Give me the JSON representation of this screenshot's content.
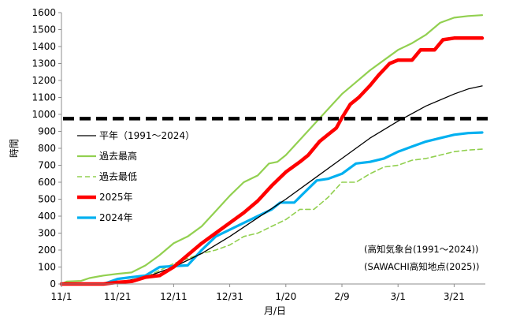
{
  "chart_data": {
    "type": "line",
    "xlabel": "月/日",
    "ylabel": "時間",
    "ylim": [
      0,
      1600
    ],
    "yticks": [
      0,
      100,
      200,
      300,
      400,
      500,
      600,
      700,
      800,
      900,
      1000,
      1100,
      1200,
      1300,
      1400,
      1500,
      1600
    ],
    "xlim": [
      0,
      150
    ],
    "xticks": [
      {
        "day": 0,
        "label": "11/1"
      },
      {
        "day": 20,
        "label": "11/21"
      },
      {
        "day": 40,
        "label": "12/11"
      },
      {
        "day": 60,
        "label": "12/31"
      },
      {
        "day": 80,
        "label": "1/20"
      },
      {
        "day": 100,
        "label": "2/9"
      },
      {
        "day": 120,
        "label": "3/1"
      },
      {
        "day": 140,
        "label": "3/21"
      }
    ],
    "grid": false,
    "reference_line": {
      "value": 975,
      "style": "dashed",
      "color": "#000000"
    },
    "series": [
      {
        "name": "平年（1991～2024）",
        "color": "#000000",
        "dash": "solid",
        "width": 1.3,
        "points": [
          [
            0,
            0
          ],
          [
            12,
            0
          ],
          [
            20,
            10
          ],
          [
            30,
            40
          ],
          [
            40,
            100
          ],
          [
            50,
            180
          ],
          [
            60,
            280
          ],
          [
            70,
            390
          ],
          [
            80,
            500
          ],
          [
            90,
            620
          ],
          [
            100,
            740
          ],
          [
            105,
            800
          ],
          [
            110,
            860
          ],
          [
            120,
            960
          ],
          [
            130,
            1050
          ],
          [
            140,
            1120
          ],
          [
            145,
            1150
          ],
          [
            150,
            1168
          ]
        ]
      },
      {
        "name": "過去最高",
        "color": "#92d050",
        "dash": "solid",
        "width": 2.2,
        "points": [
          [
            0,
            0
          ],
          [
            2,
            15
          ],
          [
            7,
            18
          ],
          [
            10,
            35
          ],
          [
            15,
            50
          ],
          [
            20,
            60
          ],
          [
            25,
            68
          ],
          [
            30,
            110
          ],
          [
            35,
            170
          ],
          [
            40,
            240
          ],
          [
            45,
            280
          ],
          [
            50,
            340
          ],
          [
            55,
            430
          ],
          [
            60,
            520
          ],
          [
            65,
            600
          ],
          [
            70,
            640
          ],
          [
            74,
            710
          ],
          [
            77,
            720
          ],
          [
            80,
            760
          ],
          [
            85,
            850
          ],
          [
            90,
            940
          ],
          [
            95,
            1030
          ],
          [
            100,
            1120
          ],
          [
            105,
            1190
          ],
          [
            110,
            1260
          ],
          [
            115,
            1320
          ],
          [
            120,
            1380
          ],
          [
            125,
            1420
          ],
          [
            130,
            1470
          ],
          [
            135,
            1540
          ],
          [
            140,
            1570
          ],
          [
            145,
            1580
          ],
          [
            150,
            1585
          ]
        ]
      },
      {
        "name": "過去最低",
        "color": "#92d050",
        "dash": "dashed",
        "width": 1.6,
        "points": [
          [
            0,
            0
          ],
          [
            12,
            0
          ],
          [
            20,
            10
          ],
          [
            30,
            40
          ],
          [
            40,
            120
          ],
          [
            50,
            180
          ],
          [
            55,
            200
          ],
          [
            60,
            230
          ],
          [
            65,
            280
          ],
          [
            70,
            300
          ],
          [
            75,
            340
          ],
          [
            80,
            380
          ],
          [
            85,
            440
          ],
          [
            90,
            440
          ],
          [
            95,
            510
          ],
          [
            100,
            600
          ],
          [
            105,
            600
          ],
          [
            110,
            650
          ],
          [
            115,
            690
          ],
          [
            120,
            700
          ],
          [
            125,
            730
          ],
          [
            130,
            740
          ],
          [
            135,
            760
          ],
          [
            140,
            780
          ],
          [
            145,
            790
          ],
          [
            150,
            795
          ]
        ]
      },
      {
        "name": "2025年",
        "color": "#ff0000",
        "dash": "solid",
        "width": 4.5,
        "points": [
          [
            0,
            0
          ],
          [
            15,
            0
          ],
          [
            20,
            10
          ],
          [
            25,
            15
          ],
          [
            30,
            40
          ],
          [
            35,
            50
          ],
          [
            40,
            100
          ],
          [
            45,
            170
          ],
          [
            50,
            240
          ],
          [
            55,
            300
          ],
          [
            60,
            360
          ],
          [
            65,
            420
          ],
          [
            70,
            490
          ],
          [
            75,
            580
          ],
          [
            80,
            660
          ],
          [
            85,
            720
          ],
          [
            88,
            760
          ],
          [
            92,
            840
          ],
          [
            95,
            880
          ],
          [
            98,
            920
          ],
          [
            100,
            980
          ],
          [
            103,
            1060
          ],
          [
            106,
            1100
          ],
          [
            110,
            1170
          ],
          [
            113,
            1230
          ],
          [
            117,
            1300
          ],
          [
            120,
            1320
          ],
          [
            125,
            1320
          ],
          [
            128,
            1380
          ],
          [
            133,
            1380
          ],
          [
            136,
            1440
          ],
          [
            140,
            1450
          ],
          [
            150,
            1450
          ]
        ]
      },
      {
        "name": "2024年",
        "color": "#00b0f0",
        "dash": "solid",
        "width": 3.2,
        "points": [
          [
            0,
            0
          ],
          [
            15,
            0
          ],
          [
            20,
            30
          ],
          [
            25,
            40
          ],
          [
            30,
            50
          ],
          [
            35,
            100
          ],
          [
            40,
            105
          ],
          [
            45,
            110
          ],
          [
            50,
            200
          ],
          [
            55,
            280
          ],
          [
            60,
            320
          ],
          [
            65,
            360
          ],
          [
            70,
            400
          ],
          [
            75,
            440
          ],
          [
            78,
            480
          ],
          [
            83,
            480
          ],
          [
            86,
            530
          ],
          [
            91,
            610
          ],
          [
            95,
            620
          ],
          [
            100,
            650
          ],
          [
            105,
            710
          ],
          [
            110,
            720
          ],
          [
            115,
            740
          ],
          [
            120,
            780
          ],
          [
            125,
            810
          ],
          [
            130,
            840
          ],
          [
            135,
            860
          ],
          [
            140,
            880
          ],
          [
            145,
            890
          ],
          [
            150,
            893
          ]
        ]
      }
    ],
    "legend": {
      "placement": "left-middle"
    },
    "annotations": [
      "(高知気象台(1991～2024))",
      "(SAWACHI高知地点(2025))"
    ]
  }
}
